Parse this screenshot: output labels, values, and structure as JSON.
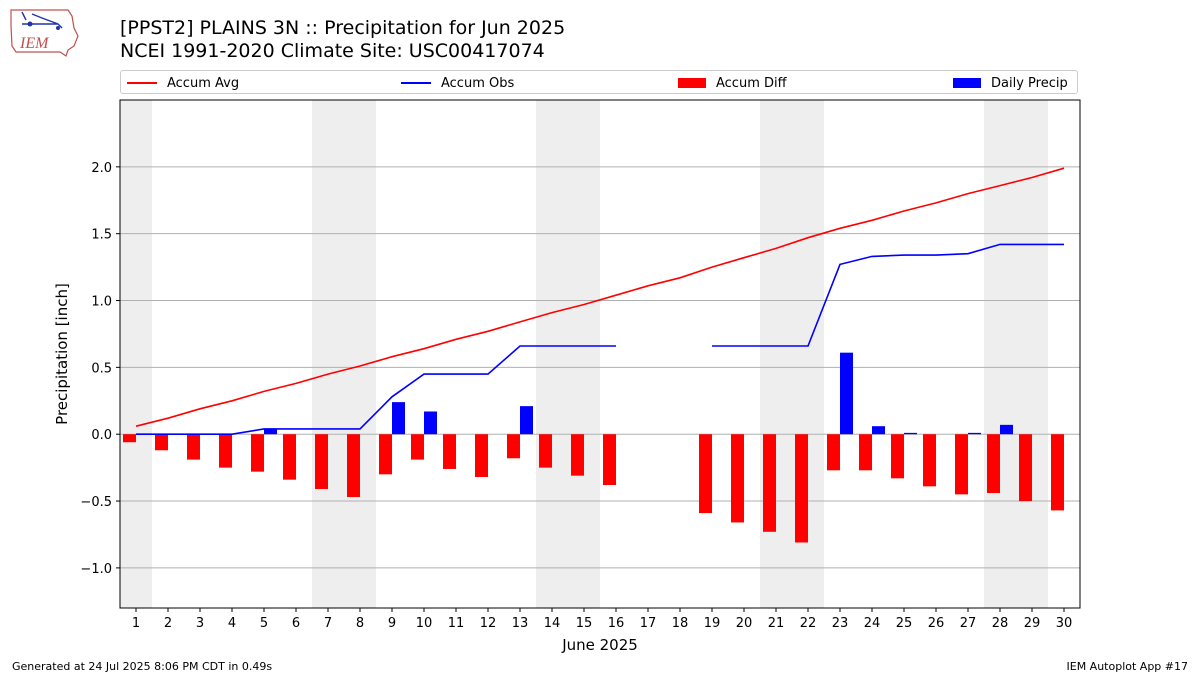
{
  "header": {
    "logo_text": "IEM",
    "title_line1": "[PPST2] PLAINS 3N :: Precipitation for Jun 2025",
    "title_line2": "NCEI 1991-2020 Climate Site: USC00417074"
  },
  "legend": {
    "position": "top, above plot",
    "items": [
      {
        "label": "Accum Avg",
        "kind": "line",
        "color": "#ff0000"
      },
      {
        "label": "Accum Obs",
        "kind": "line",
        "color": "#0000ff"
      },
      {
        "label": "Accum Diff",
        "kind": "bar",
        "color": "#ff0000"
      },
      {
        "label": "Daily Precip",
        "kind": "bar",
        "color": "#0000ff"
      }
    ]
  },
  "footer": {
    "left": "Generated at 24 Jul 2025 8:06 PM CDT in 0.49s",
    "right": "IEM Autoplot App #17"
  },
  "chart_data": {
    "type": "bar",
    "xlabel": "June 2025",
    "ylabel": "Precipitation [inch]",
    "xlim": [
      0.5,
      30.5
    ],
    "ylim": [
      -1.3,
      2.5
    ],
    "grid": "horizontal",
    "x": [
      1,
      2,
      3,
      4,
      5,
      6,
      7,
      8,
      9,
      10,
      11,
      12,
      13,
      14,
      15,
      16,
      17,
      18,
      19,
      20,
      21,
      22,
      23,
      24,
      25,
      26,
      27,
      28,
      29,
      30
    ],
    "x_tick_labels": [
      "1",
      "2",
      "3",
      "4",
      "5",
      "6",
      "7",
      "8",
      "9",
      "10",
      "11",
      "12",
      "13",
      "14",
      "15",
      "16",
      "17",
      "18",
      "19",
      "20",
      "21",
      "22",
      "23",
      "24",
      "25",
      "26",
      "27",
      "28",
      "29",
      "30"
    ],
    "y_ticks": [
      -1.0,
      -0.5,
      0.0,
      0.5,
      1.0,
      1.5,
      2.0
    ],
    "y_tick_labels": [
      "−1.0",
      "−0.5",
      "0.0",
      "0.5",
      "1.0",
      "1.5",
      "2.0"
    ],
    "weekend_shading": [
      [
        0.5,
        1.5
      ],
      [
        6.5,
        8.5
      ],
      [
        13.5,
        15.5
      ],
      [
        20.5,
        22.5
      ],
      [
        27.5,
        29.5
      ]
    ],
    "shading_color": "#eeeeee",
    "series": [
      {
        "name": "Accum Avg",
        "kind": "line",
        "color": "#ff0000",
        "values": [
          0.06,
          0.12,
          0.19,
          0.25,
          0.32,
          0.38,
          0.45,
          0.51,
          0.58,
          0.64,
          0.71,
          0.77,
          0.84,
          0.91,
          0.97,
          1.04,
          1.11,
          1.17,
          1.25,
          1.32,
          1.39,
          1.47,
          1.54,
          1.6,
          1.67,
          1.73,
          1.8,
          1.86,
          1.92,
          1.99
        ]
      },
      {
        "name": "Accum Obs",
        "kind": "line",
        "color": "#0000ff",
        "values": [
          0.0,
          0.0,
          0.0,
          0.0,
          0.04,
          0.04,
          0.04,
          0.04,
          0.28,
          0.45,
          0.45,
          0.45,
          0.66,
          0.66,
          0.66,
          0.66,
          null,
          null,
          0.66,
          0.66,
          0.66,
          0.66,
          1.27,
          1.33,
          1.34,
          1.34,
          1.35,
          1.42,
          1.42,
          1.42
        ]
      },
      {
        "name": "Accum Diff",
        "kind": "bar",
        "color": "#ff0000",
        "values": [
          -0.06,
          -0.12,
          -0.19,
          -0.25,
          -0.28,
          -0.34,
          -0.41,
          -0.47,
          -0.3,
          -0.19,
          -0.26,
          -0.32,
          -0.18,
          -0.25,
          -0.31,
          -0.38,
          null,
          null,
          -0.59,
          -0.66,
          -0.73,
          -0.81,
          -0.27,
          -0.27,
          -0.33,
          -0.39,
          -0.45,
          -0.44,
          -0.5,
          -0.57
        ]
      },
      {
        "name": "Daily Precip",
        "kind": "bar",
        "color": "#0000ff",
        "values": [
          0.0,
          0.0,
          0.0,
          0.0,
          0.04,
          0.0,
          0.0,
          0.0,
          0.24,
          0.17,
          0.0,
          0.0,
          0.21,
          0.0,
          0.0,
          0.0,
          null,
          null,
          0.0,
          0.0,
          0.0,
          0.0,
          0.61,
          0.06,
          0.01,
          0.0,
          0.01,
          0.07,
          0.0,
          0.0
        ]
      }
    ]
  }
}
